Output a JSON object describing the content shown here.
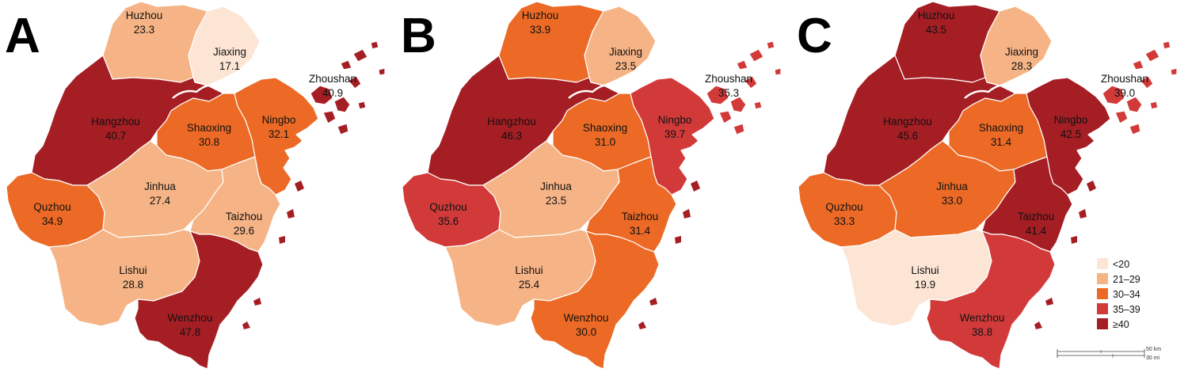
{
  "panels": [
    {
      "letter": "A",
      "regions": {
        "Huzhou": {
          "name": "Huzhou",
          "value": "23.3",
          "category": "21–29"
        },
        "Jiaxing": {
          "name": "Jiaxing",
          "value": "17.1",
          "category": "<20"
        },
        "Zhoushan": {
          "name": "Zhoushan",
          "value": "40.9",
          "category": "≥40"
        },
        "Hangzhou": {
          "name": "Hangzhou",
          "value": "40.7",
          "category": "≥40"
        },
        "Shaoxing": {
          "name": "Shaoxing",
          "value": "30.8",
          "category": "30–34"
        },
        "Ningbo": {
          "name": "Ningbo",
          "value": "32.1",
          "category": "30–34"
        },
        "Quzhou": {
          "name": "Quzhou",
          "value": "34.9",
          "category": "30–34"
        },
        "Jinhua": {
          "name": "Jinhua",
          "value": "27.4",
          "category": "21–29"
        },
        "Taizhou": {
          "name": "Taizhou",
          "value": "29.6",
          "category": "21–29"
        },
        "Lishui": {
          "name": "Lishui",
          "value": "28.8",
          "category": "21–29"
        },
        "Wenzhou": {
          "name": "Wenzhou",
          "value": "47.8",
          "category": "≥40"
        }
      }
    },
    {
      "letter": "B",
      "regions": {
        "Huzhou": {
          "name": "Huzhou",
          "value": "33.9",
          "category": "30–34"
        },
        "Jiaxing": {
          "name": "Jiaxing",
          "value": "23.5",
          "category": "21–29"
        },
        "Zhoushan": {
          "name": "Zhoushan",
          "value": "35.3",
          "category": "35–39"
        },
        "Hangzhou": {
          "name": "Hangzhou",
          "value": "46.3",
          "category": "≥40"
        },
        "Shaoxing": {
          "name": "Shaoxing",
          "value": "31.0",
          "category": "30–34"
        },
        "Ningbo": {
          "name": "Ningbo",
          "value": "39.7",
          "category": "35–39"
        },
        "Quzhou": {
          "name": "Quzhou",
          "value": "35.6",
          "category": "35–39"
        },
        "Jinhua": {
          "name": "Jinhua",
          "value": "23.5",
          "category": "21–29"
        },
        "Taizhou": {
          "name": "Taizhou",
          "value": "31.4",
          "category": "30–34"
        },
        "Lishui": {
          "name": "Lishui",
          "value": "25.4",
          "category": "21–29"
        },
        "Wenzhou": {
          "name": "Wenzhou",
          "value": "30.0",
          "category": "30–34"
        }
      }
    },
    {
      "letter": "C",
      "regions": {
        "Huzhou": {
          "name": "Huzhou",
          "value": "43.5",
          "category": "≥40"
        },
        "Jiaxing": {
          "name": "Jiaxing",
          "value": "28.3",
          "category": "21–29"
        },
        "Zhoushan": {
          "name": "Zhoushan",
          "value": "39.0",
          "category": "35–39"
        },
        "Hangzhou": {
          "name": "Hangzhou",
          "value": "45.6",
          "category": "≥40"
        },
        "Shaoxing": {
          "name": "Shaoxing",
          "value": "31.4",
          "category": "30–34"
        },
        "Ningbo": {
          "name": "Ningbo",
          "value": "42.5",
          "category": "≥40"
        },
        "Quzhou": {
          "name": "Quzhou",
          "value": "33.3",
          "category": "30–34"
        },
        "Jinhua": {
          "name": "Jinhua",
          "value": "33.0",
          "category": "30–34"
        },
        "Taizhou": {
          "name": "Taizhou",
          "value": "41.4",
          "category": "≥40"
        },
        "Lishui": {
          "name": "Lishui",
          "value": "19.9",
          "category": "<20"
        },
        "Wenzhou": {
          "name": "Wenzhou",
          "value": "38.8",
          "category": "35–39"
        }
      }
    }
  ],
  "legend": [
    {
      "label": "<20",
      "color": "#fde5d6"
    },
    {
      "label": "21–29",
      "color": "#f6b486"
    },
    {
      "label": "30–34",
      "color": "#ec6a25"
    },
    {
      "label": "35–39",
      "color": "#d23a3a"
    },
    {
      "label": "≥40",
      "color": "#a51e24"
    }
  ],
  "scale_bar": {
    "km_label": "50 km",
    "mi_label": "30 mi"
  }
}
